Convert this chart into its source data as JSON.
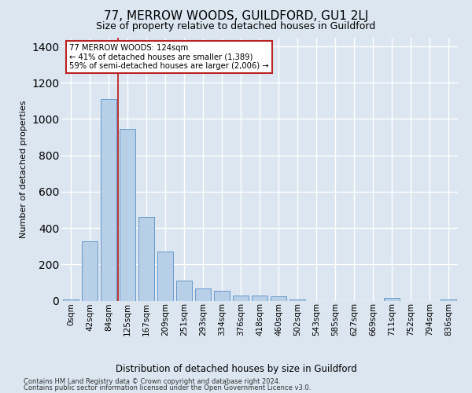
{
  "title": "77, MERROW WOODS, GUILDFORD, GU1 2LJ",
  "subtitle": "Size of property relative to detached houses in Guildford",
  "xlabel_bottom": "Distribution of detached houses by size in Guildford",
  "ylabel": "Number of detached properties",
  "footer_line1": "Contains HM Land Registry data © Crown copyright and database right 2024.",
  "footer_line2": "Contains public sector information licensed under the Open Government Licence v3.0.",
  "bar_labels": [
    "0sqm",
    "42sqm",
    "84sqm",
    "125sqm",
    "167sqm",
    "209sqm",
    "251sqm",
    "293sqm",
    "334sqm",
    "376sqm",
    "418sqm",
    "460sqm",
    "502sqm",
    "543sqm",
    "585sqm",
    "627sqm",
    "669sqm",
    "711sqm",
    "752sqm",
    "794sqm",
    "836sqm"
  ],
  "bar_values": [
    5,
    325,
    1110,
    945,
    460,
    270,
    110,
    65,
    55,
    30,
    30,
    25,
    5,
    0,
    0,
    0,
    0,
    15,
    0,
    0,
    5
  ],
  "bar_color": "#b8cfe8",
  "bar_edge_color": "#6699cc",
  "vline_color": "#bb2222",
  "annotation_text": "77 MERROW WOODS: 124sqm\n← 41% of detached houses are smaller (1,389)\n59% of semi-detached houses are larger (2,006) →",
  "annotation_box_color": "#ffffff",
  "annotation_box_edge": "#bb2222",
  "ylim": [
    0,
    1450
  ],
  "background_color": "#dce6f0",
  "plot_bg_color": "#dce6f0",
  "grid_color": "#ffffff",
  "title_fontsize": 11,
  "subtitle_fontsize": 9,
  "ylabel_fontsize": 8,
  "tick_fontsize": 7.5,
  "footer_fontsize": 6,
  "xlabel_fontsize": 8.5
}
